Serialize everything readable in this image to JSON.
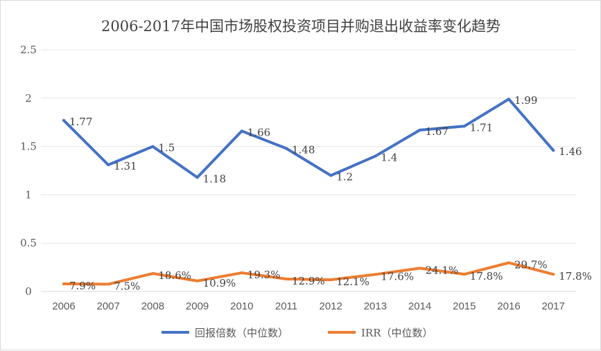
{
  "chart_data": {
    "type": "line",
    "title": "2006-2017年中国市场股权投资项目并购退出收益率变化趋势",
    "xlabel": "",
    "ylabel": "",
    "categories": [
      "2006",
      "2007",
      "2008",
      "2009",
      "2010",
      "2011",
      "2012",
      "2013",
      "2014",
      "2015",
      "2016",
      "2017"
    ],
    "ylim": [
      0,
      2.5
    ],
    "yticks": [
      "0",
      "0.5",
      "1",
      "1.5",
      "2",
      "2.5"
    ],
    "grid": true,
    "legend_position": "bottom",
    "series": [
      {
        "name": "回报倍数（中位数）",
        "color": "#4472C4",
        "values": [
          1.77,
          1.31,
          1.5,
          1.18,
          1.66,
          1.48,
          1.2,
          1.4,
          1.67,
          1.71,
          1.99,
          1.46
        ],
        "labels": [
          "1.77",
          "1.31",
          "1.5",
          "1.18",
          "1.66",
          "1.48",
          "1.2",
          "1.4",
          "1.67",
          "1.71",
          "1.99",
          "1.46"
        ]
      },
      {
        "name": "IRR（中位数）",
        "color": "#ED7D31",
        "values": [
          0.079,
          0.075,
          0.186,
          0.109,
          0.193,
          0.129,
          0.121,
          0.176,
          0.241,
          0.178,
          0.297,
          0.178
        ],
        "labels": [
          "7.9%",
          "7.5%",
          "18.6%",
          "10.9%",
          "19.3%",
          "12.9%",
          "12.1%",
          "17.6%",
          "24.1%",
          "17.8%",
          "29.7%",
          "17.8%"
        ]
      }
    ]
  }
}
